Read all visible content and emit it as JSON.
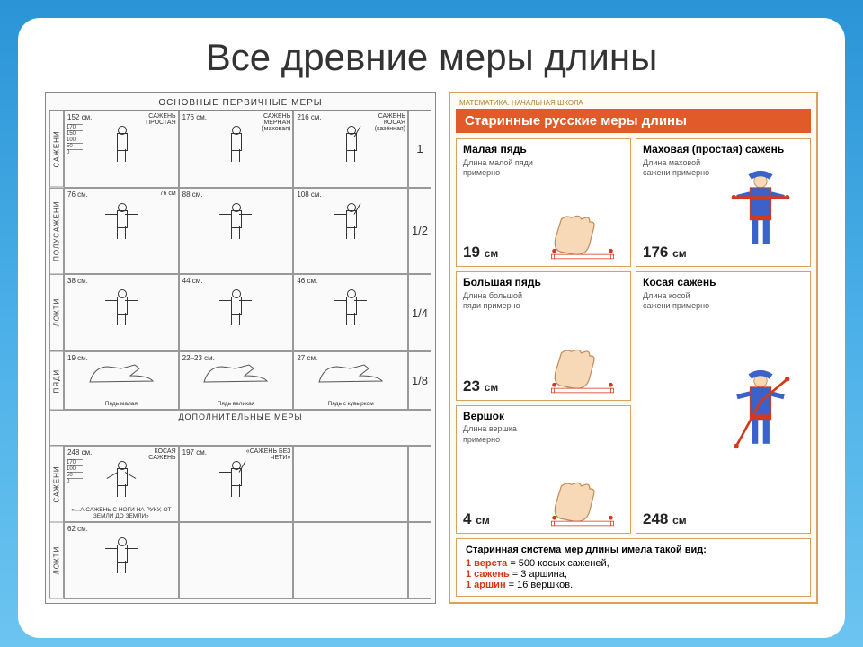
{
  "slide": {
    "title": "Все древние меры длины",
    "bg_gradient": [
      "#2b94d6",
      "#4bb0e8",
      "#6cc4f0"
    ],
    "card_bg": "#ffffff"
  },
  "left_poster": {
    "header": "ОСНОВНЫЕ ПЕРВИЧНЫЕ МЕРЫ",
    "rows": [
      {
        "label": "САЖЕНИ",
        "cells": [
          {
            "top": "152 см.",
            "sub": "САЖЕНЬ ПРОСТАЯ",
            "pose": "arms-out",
            "scale": [
              "170",
              "150",
              "100",
              "50",
              "0"
            ]
          },
          {
            "top": "176 см.",
            "sub": "САЖЕНЬ МЕРНАЯ (маховая)",
            "pose": "arms-out"
          },
          {
            "top": "216 см.",
            "sub": "САЖЕНЬ КОСАЯ (казённая)",
            "pose": "one-arm"
          }
        ],
        "frac": "1"
      },
      {
        "label": "ПОЛУСАЖЕНИ",
        "cells": [
          {
            "top": "76 см.",
            "sub": "76 см",
            "pose": "arms-out"
          },
          {
            "top": "88 см.",
            "pose": "arms-out"
          },
          {
            "top": "108 см.",
            "pose": "one-arm"
          }
        ],
        "frac": "1/2"
      },
      {
        "label": "ЛОКТИ",
        "cells": [
          {
            "top": "38 см.",
            "pose": "arms-fold"
          },
          {
            "top": "44 см.",
            "pose": "arms-fold"
          },
          {
            "top": "46 см.",
            "pose": "arms-fold"
          }
        ],
        "frac": "1/4"
      },
      {
        "label": "ПЯДИ",
        "cells": [
          {
            "top": "19 см.",
            "foot": true,
            "note": "Пядь малая"
          },
          {
            "top": "22–23 см.",
            "foot": true,
            "note": "Пядь великая"
          },
          {
            "top": "27 см.",
            "foot": true,
            "note": "Пядь с кувырком"
          }
        ],
        "frac": "1/8"
      }
    ],
    "extra_header": "ДОПОЛНИТЕЛЬНЫЕ МЕРЫ",
    "extra_rows": [
      {
        "label": "САЖЕНИ",
        "cells": [
          {
            "top": "248 см.",
            "sub": "КОСАЯ САЖЕНЬ",
            "note": "«…А САЖЕНЬ С НОГИ НА РУКУ, ОТ ЗЕМЛИ ДО ЗЕМЛИ»",
            "scale": [
              "170",
              "100",
              "50",
              "0"
            ],
            "pose": "arms-up"
          },
          {
            "top": "197 см.",
            "sub": "«САЖЕНЬ БЕЗ ЧЕТИ»",
            "pose": "one-arm"
          }
        ]
      },
      {
        "label": "ЛОКТИ",
        "cells": [
          {
            "top": "62 см.",
            "pose": "arms-out"
          }
        ]
      }
    ]
  },
  "right_poster": {
    "topnote": "МАТЕМАТИКА. НАЧАЛЬНАЯ ШКОЛА",
    "title": "Старинные русские меры длины",
    "colors": {
      "border": "#d9a05e",
      "banner": "#e05a2a",
      "red": "#d43a1a",
      "hand_fill": "#f7d9b8",
      "hand_stroke": "#c08a5a",
      "ruler": "#d43a1a",
      "person_body": "#3a62c9",
      "person_trim": "#d43a1a"
    },
    "cells": [
      {
        "name": "Малая пядь",
        "desc": "Длина малой пяди примерно",
        "value": "19",
        "unit": "см",
        "kind": "hand"
      },
      {
        "name": "Маховая (простая) сажень",
        "desc": "Длина маховой сажени примерно",
        "value": "176",
        "unit": "см",
        "kind": "person-arms"
      },
      {
        "name": "Большая пядь",
        "desc": "Длина большой пяди примерно",
        "value": "23",
        "unit": "см",
        "kind": "hand"
      },
      {
        "name": "Косая сажень",
        "desc": "Длина косой сажени примерно",
        "value": "248",
        "unit": "см",
        "kind": "person-diag"
      },
      {
        "name": "Вершок",
        "desc": "Длина вершка примерно",
        "value": "4",
        "unit": "см",
        "kind": "hand"
      }
    ],
    "grid_layout": [
      [
        0,
        1
      ],
      [
        2,
        1
      ],
      [
        2,
        3
      ],
      [
        4,
        3
      ]
    ],
    "footer": {
      "title": "Старинная система мер длины имела такой вид:",
      "lines": [
        {
          "lhs": "1 верста",
          "rhs": "= 500 косых саженей,"
        },
        {
          "lhs": "1 сажень",
          "rhs": "= 3 аршина,"
        },
        {
          "lhs": "1 аршин",
          "rhs": "= 16 вершков."
        }
      ]
    }
  }
}
